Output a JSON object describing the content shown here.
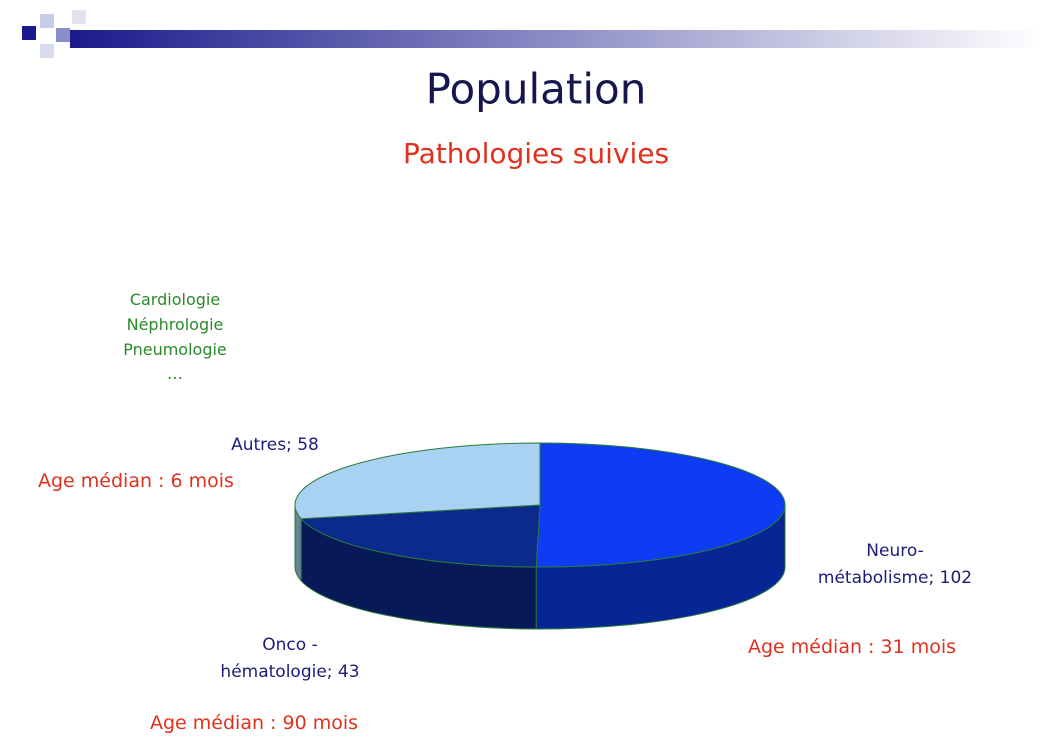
{
  "chart_data": {
    "type": "pie",
    "title": "Population",
    "subtitle": "Pathologies suivies",
    "values": [
      102,
      43,
      58
    ],
    "value_labels": [
      "Neuro-\nmétabolisme; 102",
      "Onco -\nhématologie; 43",
      "Autres; 58"
    ],
    "colors": [
      "#0d3cf2",
      "#0b2a8c",
      "#a9d2f2"
    ],
    "annotations": [
      {
        "text": "Age médian : 31 mois"
      },
      {
        "text": "Age médian : 90 mois"
      },
      {
        "text": "Age médian : 6 mois"
      }
    ],
    "note": "Cardiologie\nNéphrologie\nPneumologie\n…"
  }
}
